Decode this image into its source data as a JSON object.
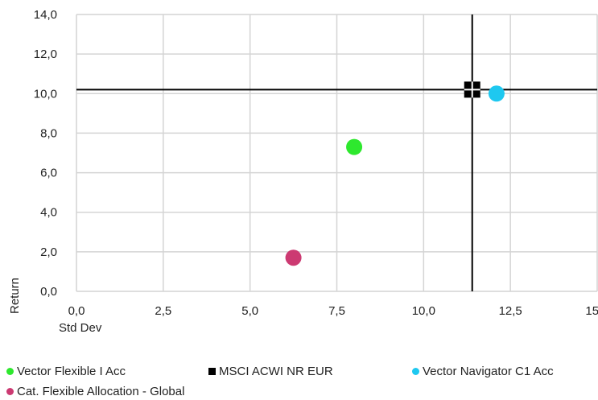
{
  "chart_data": {
    "type": "scatter",
    "title": "",
    "xlabel": "Std Dev",
    "ylabel": "Return",
    "xlim": [
      0,
      15
    ],
    "ylim": [
      0,
      14
    ],
    "x_ticks": [
      "0,0",
      "2,5",
      "5,0",
      "7,5",
      "10,0",
      "12,5",
      "15,0"
    ],
    "y_ticks": [
      "0,0",
      "2,0",
      "4,0",
      "6,0",
      "8,0",
      "10,0",
      "12,0",
      "14,0"
    ],
    "grid": true,
    "legend_position": "bottom",
    "crosshair": {
      "x": 11.4,
      "y": 10.2
    },
    "series": [
      {
        "name": "Vector Flexible I Acc",
        "marker": "circle",
        "color": "#2ee82e",
        "x": 8.0,
        "y": 7.3
      },
      {
        "name": "MSCI ACWI NR EUR",
        "marker": "square",
        "color": "#000000",
        "x": 11.4,
        "y": 10.2
      },
      {
        "name": "Vector Navigator C1 Acc",
        "marker": "circle",
        "color": "#1ec8f0",
        "x": 12.1,
        "y": 10.0
      },
      {
        "name": "Cat. Flexible Allocation - Global",
        "marker": "circle",
        "color": "#cc3a72",
        "x": 6.25,
        "y": 1.7
      }
    ]
  }
}
